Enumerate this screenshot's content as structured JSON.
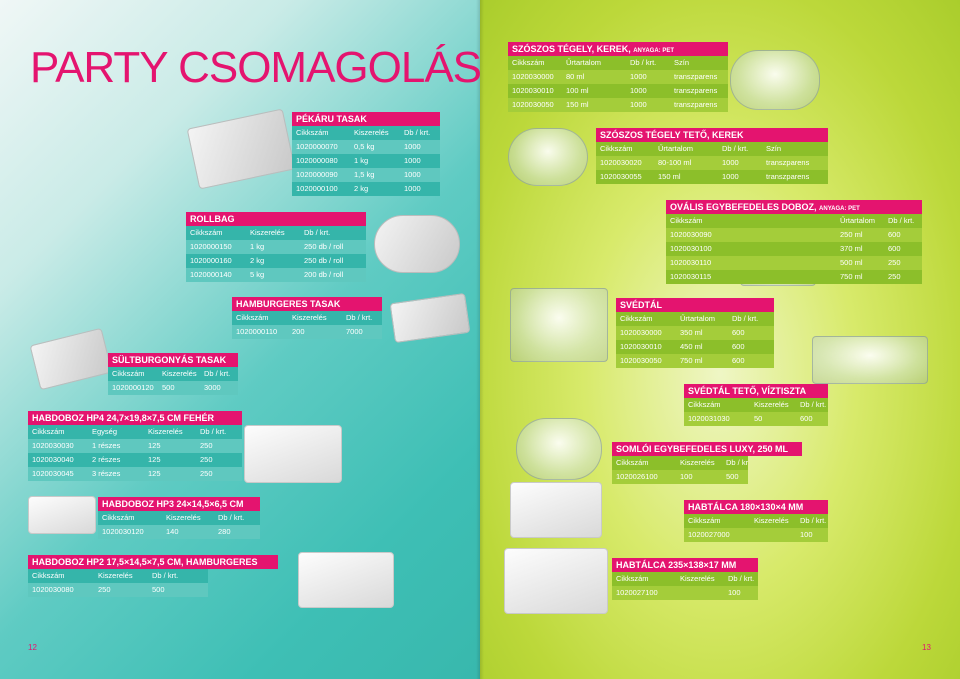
{
  "left": {
    "title": "PARTY CSOMAGOLÁS",
    "page_number": "12",
    "pekaru": {
      "title": "PÉKÁRU TASAK",
      "headers": [
        "Cikkszám",
        "Kiszerelés",
        "Db / krt."
      ],
      "rows": [
        [
          "1020000070",
          "0,5 kg",
          "1000"
        ],
        [
          "1020000080",
          "1 kg",
          "1000"
        ],
        [
          "1020000090",
          "1,5 kg",
          "1000"
        ],
        [
          "1020000100",
          "2 kg",
          "1000"
        ]
      ]
    },
    "rollbag": {
      "title": "ROLLBAG",
      "headers": [
        "Cikkszám",
        "Kiszerelés",
        "Db / krt."
      ],
      "rows": [
        [
          "1020000150",
          "1 kg",
          "250 db / roll"
        ],
        [
          "1020000160",
          "2 kg",
          "250 db / roll"
        ],
        [
          "1020000140",
          "5 kg",
          "200 db / roll"
        ]
      ]
    },
    "hamburgeres": {
      "title": "HAMBURGERES TASAK",
      "headers": [
        "Cikkszám",
        "Kiszerelés",
        "Db / krt."
      ],
      "rows": [
        [
          "1020000110",
          "200",
          "7000"
        ]
      ]
    },
    "sultburgonyas": {
      "title": "SÜLTBURGONYÁS TASAK",
      "headers": [
        "Cikkszám",
        "Kiszerelés",
        "Db / krt."
      ],
      "rows": [
        [
          "1020000120",
          "500",
          "3000"
        ]
      ]
    },
    "hp4": {
      "title": "HABDOBOZ HP4 24,7×19,8×7,5 CM FEHÉR",
      "headers": [
        "Cikkszám",
        "Egység",
        "Kiszerelés",
        "Db / krt."
      ],
      "rows": [
        [
          "1020030030",
          "1 részes",
          "125",
          "250"
        ],
        [
          "1020030040",
          "2 részes",
          "125",
          "250"
        ],
        [
          "1020030045",
          "3 részes",
          "125",
          "250"
        ]
      ]
    },
    "hp3": {
      "title": "HABDOBOZ HP3 24×14,5×6,5 CM",
      "headers": [
        "Cikkszám",
        "Kiszerelés",
        "Db / krt."
      ],
      "rows": [
        [
          "1020030120",
          "140",
          "280"
        ]
      ]
    },
    "hp2": {
      "title": "HABDOBOZ HP2 17,5×14,5×7,5 CM, HAMBURGERES",
      "headers": [
        "Cikkszám",
        "Kiszerelés",
        "Db / krt."
      ],
      "rows": [
        [
          "1020030080",
          "250",
          "500"
        ]
      ]
    }
  },
  "right": {
    "page_number": "13",
    "szoszos_tegely": {
      "title": "SZÓSZOS TÉGELY, KEREK, ",
      "subtitle": "ANYAGA: PET",
      "headers": [
        "Cikkszám",
        "Űrtartalom",
        "Db / krt.",
        "Szín"
      ],
      "rows": [
        [
          "1020030000",
          "80 ml",
          "1000",
          "transzparens"
        ],
        [
          "1020030010",
          "100 ml",
          "1000",
          "transzparens"
        ],
        [
          "1020030050",
          "150 ml",
          "1000",
          "transzparens"
        ]
      ]
    },
    "szoszos_teto": {
      "title": "SZÓSZOS TÉGELY TETŐ, KEREK",
      "headers": [
        "Cikkszám",
        "Űrtartalom",
        "Db / krt.",
        "Szín"
      ],
      "rows": [
        [
          "1020030020",
          "80-100 ml",
          "1000",
          "transzparens"
        ],
        [
          "1020030055",
          "150 ml",
          "1000",
          "transzparens"
        ]
      ]
    },
    "ovalis": {
      "title": "OVÁLIS EGYBEFEDELES DOBOZ, ",
      "subtitle": "ANYAGA: PET",
      "headers": [
        "Cikkszám",
        "Űrtartalom",
        "Db / krt."
      ],
      "rows": [
        [
          "1020030090",
          "250 ml",
          "600"
        ],
        [
          "1020030100",
          "370 ml",
          "600"
        ],
        [
          "1020030110",
          "500 ml",
          "250"
        ],
        [
          "1020030115",
          "750 ml",
          "250"
        ]
      ]
    },
    "svedtal": {
      "title": "SVÉDTÁL",
      "headers": [
        "Cikkszám",
        "Űrtartalom",
        "Db / krt."
      ],
      "rows": [
        [
          "1020030000",
          "350 ml",
          "600"
        ],
        [
          "1020030010",
          "450 ml",
          "600"
        ],
        [
          "1020030050",
          "750 ml",
          "600"
        ]
      ]
    },
    "svedtal_teto": {
      "title": "SVÉDTÁL TETŐ, VÍZTISZTA",
      "headers": [
        "Cikkszám",
        "Kiszerelés",
        "Db / krt."
      ],
      "rows": [
        [
          "1020031030",
          "50",
          "600"
        ]
      ]
    },
    "somloi": {
      "title": "SOMLÓI EGYBEFEDELES LUXY, 250 ML",
      "headers": [
        "Cikkszám",
        "Kiszerelés",
        "Db / krt."
      ],
      "rows": [
        [
          "1020026100",
          "100",
          "500"
        ]
      ]
    },
    "habtalca1": {
      "title": "HABTÁLCA 180×130×4 MM",
      "headers": [
        "Cikkszám",
        "Kiszerelés",
        "Db / krt."
      ],
      "rows": [
        [
          "1020027000",
          "",
          "100"
        ]
      ]
    },
    "habtalca2": {
      "title": "HABTÁLCA 235×138×17 MM",
      "headers": [
        "Cikkszám",
        "Kiszerelés",
        "Db / krt."
      ],
      "rows": [
        [
          "1020027100",
          "",
          "100"
        ]
      ]
    }
  },
  "colors": {
    "accent": "#e4146f",
    "teal_header": "#35b5aa",
    "teal_row": "#5fc8bf",
    "green_header": "#8cbf2a",
    "green_row": "#a4cd3a"
  }
}
